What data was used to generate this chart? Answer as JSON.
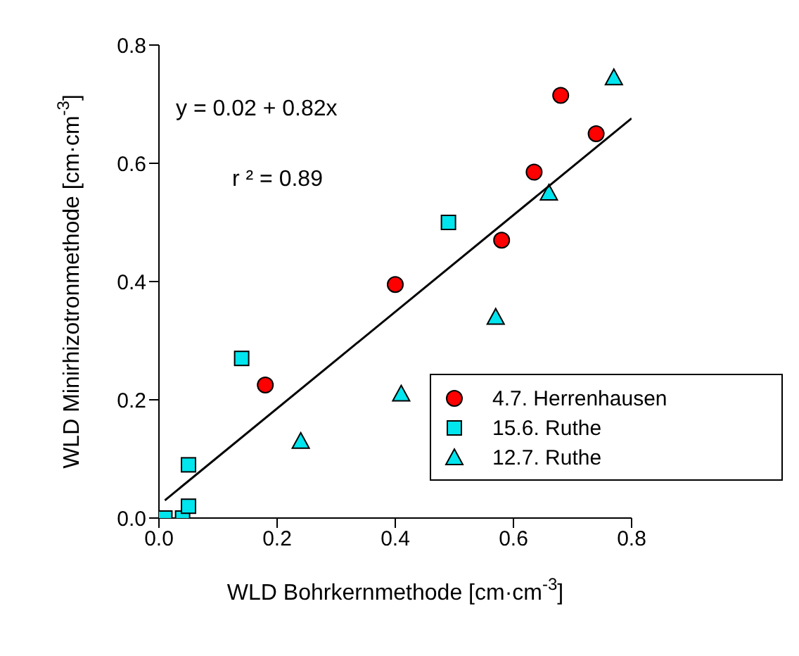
{
  "chart_data": {
    "type": "scatter",
    "xlabel": "WLD Bohrkernmethode [cm·cm$^{-3}$]",
    "ylabel": "WLD Minirhizotronmethode [cm·cm$^{-3}$]",
    "annotations": [
      "y = 0.02 +  0.82x",
      "r ² = 0.89"
    ],
    "xlim": [
      0,
      0.8
    ],
    "ylim": [
      0,
      0.8
    ],
    "xticks": [
      {
        "value": 0,
        "label": "0.0"
      },
      0.2,
      0.4,
      0.6,
      0.8
    ],
    "yticks": [
      {
        "value": 0,
        "label": "0.0"
      },
      0.2,
      0.4,
      0.6,
      0.8
    ],
    "legend": "right",
    "series": [
      {
        "name": "4.7. Herrenhausen",
        "color": "#ff0000",
        "marker": "circle",
        "x": [
          0.18,
          0.4,
          0.58,
          0.635,
          0.68,
          0.74
        ],
        "values": [
          0.225,
          0.395,
          0.47,
          0.585,
          0.715,
          0.65
        ]
      },
      {
        "name": "15.6. Ruthe",
        "color": "#00e5ee",
        "marker": "square",
        "x": [
          0.01,
          0.04,
          0.05,
          0.05,
          0.14,
          0.49
        ],
        "values": [
          0,
          0,
          0.02,
          0.09,
          0.27,
          0.5
        ]
      },
      {
        "name": "12.7. Ruthe",
        "color": "#00e5ee",
        "marker": "triangle",
        "x": [
          0.24,
          0.41,
          0.57,
          0.66,
          0.77
        ],
        "values": [
          0.13,
          0.21,
          0.34,
          0.55,
          0.745
        ]
      },
      {
        "type": "line",
        "color": "#000000",
        "marker": "none",
        "x": [
          0.01,
          0.8
        ],
        "values": [
          0.03,
          0.676
        ]
      }
    ]
  }
}
